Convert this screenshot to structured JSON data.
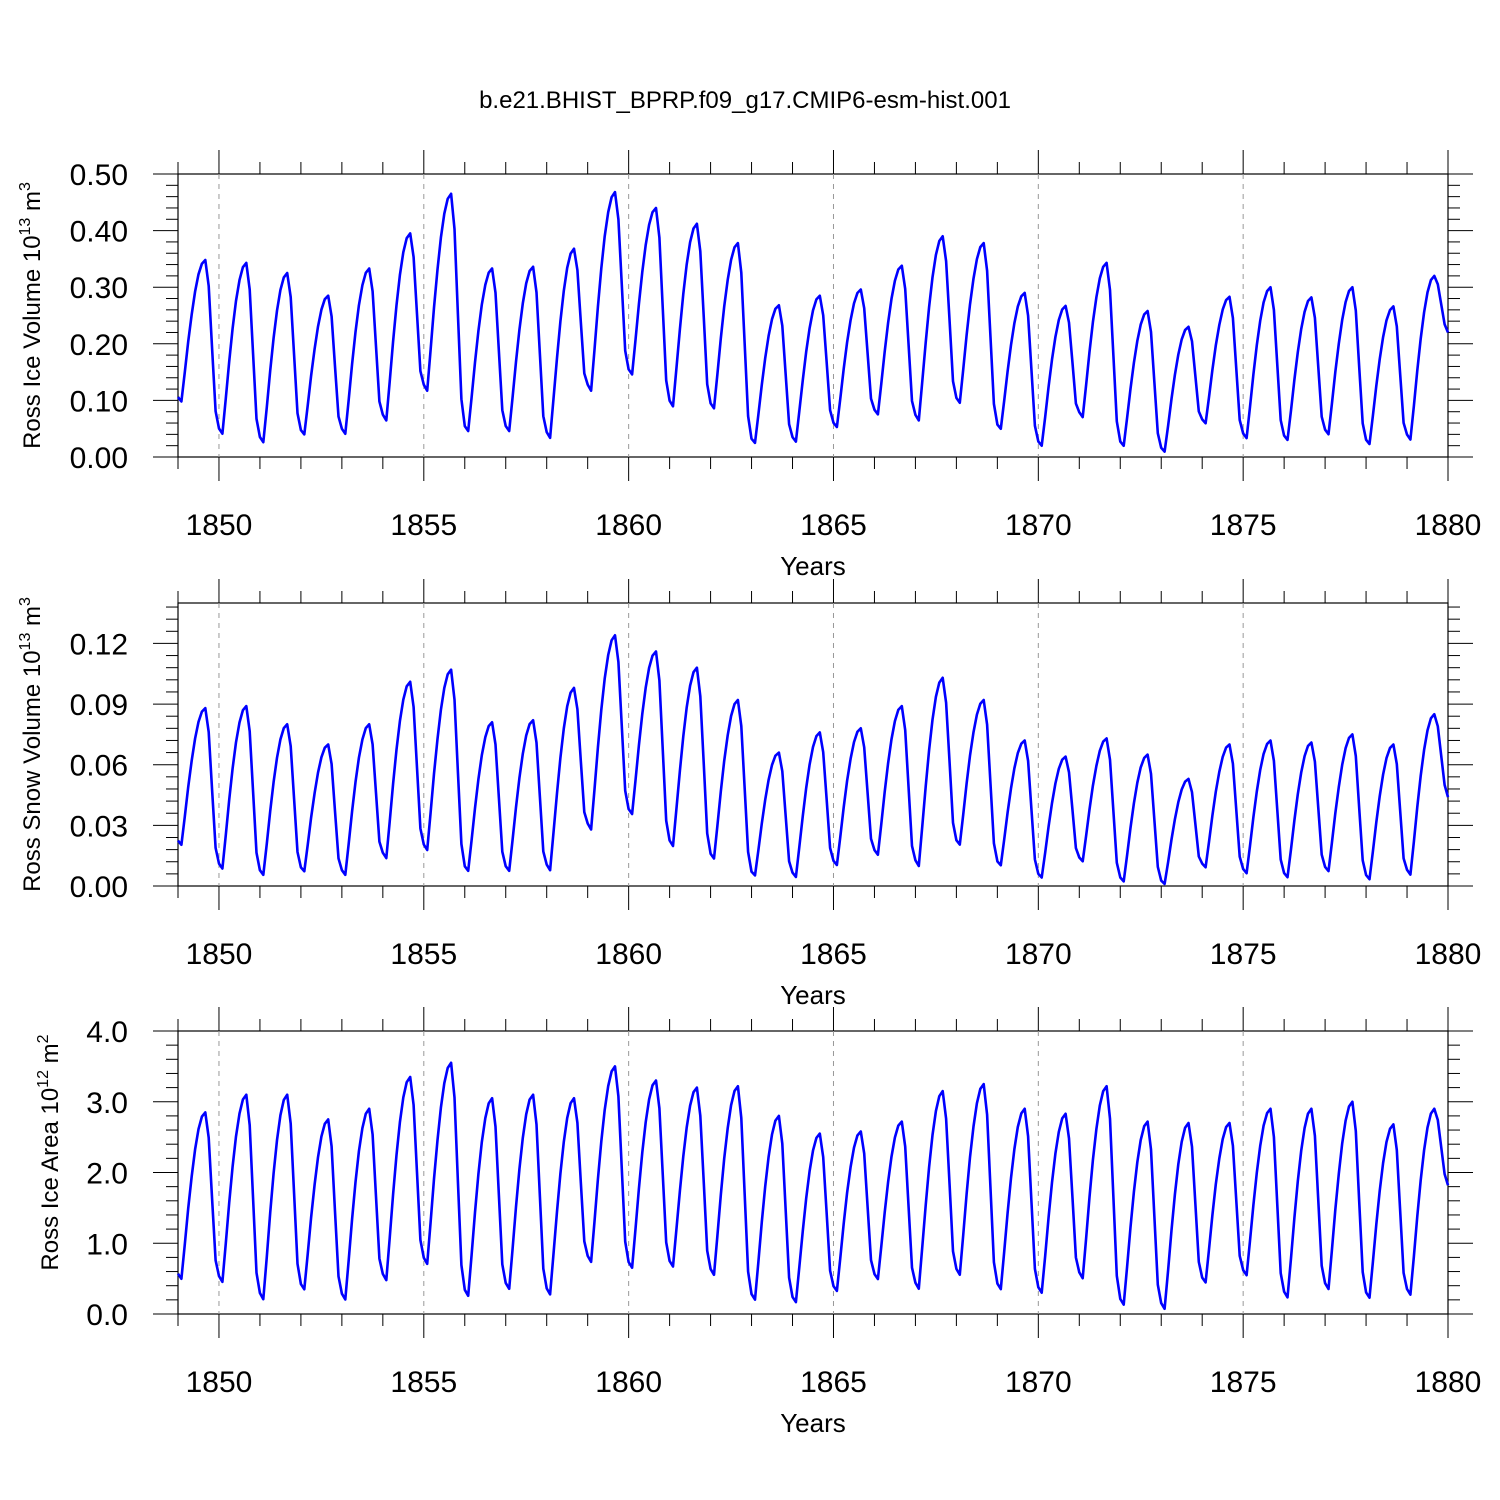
{
  "figure": {
    "title": "b.e21.BHIST_BPRP.f09_g17.CMIP6-esm-hist.001"
  },
  "chart_data": [
    {
      "type": "line",
      "title": "",
      "xlabel": "Years",
      "ylabel": "Ross Ice Volume 10",
      "ylabel_exp": "13",
      "ylabel_unit": " m",
      "ylabel_unit_exp": "3",
      "xlim": [
        1849,
        1880
      ],
      "ylim": [
        0,
        0.5
      ],
      "x_ticks": [
        "1850",
        "1855",
        "1860",
        "1865",
        "1870",
        "1875",
        "1880"
      ],
      "y_ticks": [
        "0.00",
        "0.10",
        "0.20",
        "0.30",
        "0.40",
        "0.50"
      ],
      "grid": "dashed vertical at 5-year ticks",
      "series_color": "#0000ff",
      "series": [
        {
          "start_year": 1849,
          "mode": "annual",
          "maxima": [
            0.348,
            0.343,
            0.325,
            0.285,
            0.333,
            0.395,
            0.465,
            0.333,
            0.336,
            0.368,
            0.468,
            0.44,
            0.412,
            0.378,
            0.268,
            0.285,
            0.296,
            0.338,
            0.39,
            0.378,
            0.29,
            0.267,
            0.343,
            0.258,
            0.23,
            0.283,
            0.3,
            0.282,
            0.3,
            0.266,
            0.32
          ],
          "minima": [
            0.093,
            0.035,
            0.02,
            0.035,
            0.035,
            0.058,
            0.11,
            0.04,
            0.04,
            0.027,
            0.11,
            0.14,
            0.083,
            0.08,
            0.02,
            0.022,
            0.048,
            0.07,
            0.058,
            0.09,
            0.045,
            0.015,
            0.065,
            0.015,
            0.005,
            0.055,
            0.028,
            0.025,
            0.035,
            0.018,
            0.025
          ],
          "last_value": 0.22
        }
      ]
    },
    {
      "type": "line",
      "title": "",
      "xlabel": "Years",
      "ylabel": "Ross Snow Volume 10",
      "ylabel_exp": "13",
      "ylabel_unit": " m",
      "ylabel_unit_exp": "3",
      "xlim": [
        1849,
        1880
      ],
      "ylim": [
        0,
        0.14
      ],
      "x_ticks": [
        "1850",
        "1855",
        "1860",
        "1865",
        "1870",
        "1875",
        "1880"
      ],
      "y_ticks": [
        "0.00",
        "0.03",
        "0.06",
        "0.09",
        "0.12"
      ],
      "grid": "dashed vertical at 5-year ticks",
      "series_color": "#0000ff",
      "series": [
        {
          "start_year": 1849,
          "mode": "annual",
          "maxima": [
            0.088,
            0.089,
            0.08,
            0.07,
            0.08,
            0.101,
            0.107,
            0.081,
            0.082,
            0.098,
            0.124,
            0.116,
            0.108,
            0.092,
            0.066,
            0.076,
            0.078,
            0.089,
            0.103,
            0.092,
            0.072,
            0.064,
            0.073,
            0.065,
            0.053,
            0.07,
            0.072,
            0.071,
            0.075,
            0.07,
            0.085
          ],
          "minima": [
            0.019,
            0.007,
            0.004,
            0.006,
            0.004,
            0.012,
            0.016,
            0.006,
            0.006,
            0.006,
            0.026,
            0.034,
            0.018,
            0.012,
            0.004,
            0.003,
            0.009,
            0.014,
            0.008,
            0.019,
            0.009,
            0.003,
            0.011,
            0.001,
            0.0,
            0.008,
            0.005,
            0.003,
            0.006,
            0.002,
            0.004
          ],
          "last_value": 0.044
        }
      ]
    },
    {
      "type": "line",
      "title": "",
      "xlabel": "Years",
      "ylabel": "Ross Ice Area 10",
      "ylabel_exp": "12",
      "ylabel_unit": " m",
      "ylabel_unit_exp": "2",
      "xlim": [
        1849,
        1880
      ],
      "ylim": [
        0,
        4.0
      ],
      "x_ticks": [
        "1850",
        "1855",
        "1860",
        "1865",
        "1870",
        "1875",
        "1880"
      ],
      "y_ticks": [
        "0.0",
        "1.0",
        "2.0",
        "3.0",
        "4.0"
      ],
      "grid": "dashed vertical at 5-year ticks",
      "series_color": "#0000ff",
      "series": [
        {
          "start_year": 1849,
          "mode": "annual",
          "maxima": [
            2.85,
            3.1,
            3.1,
            2.75,
            2.9,
            3.35,
            3.55,
            3.05,
            3.1,
            3.05,
            3.5,
            3.3,
            3.2,
            3.22,
            2.8,
            2.55,
            2.58,
            2.72,
            3.15,
            3.25,
            2.9,
            2.83,
            3.22,
            2.72,
            2.7,
            2.7,
            2.9,
            2.9,
            3.0,
            2.68,
            2.9
          ],
          "minima": [
            0.45,
            0.4,
            0.15,
            0.3,
            0.15,
            0.42,
            0.65,
            0.2,
            0.3,
            0.22,
            0.68,
            0.6,
            0.62,
            0.5,
            0.15,
            0.12,
            0.28,
            0.45,
            0.3,
            0.5,
            0.3,
            0.25,
            0.45,
            0.08,
            0.02,
            0.4,
            0.5,
            0.18,
            0.3,
            0.18,
            0.22
          ],
          "last_value": 1.82
        }
      ]
    }
  ]
}
